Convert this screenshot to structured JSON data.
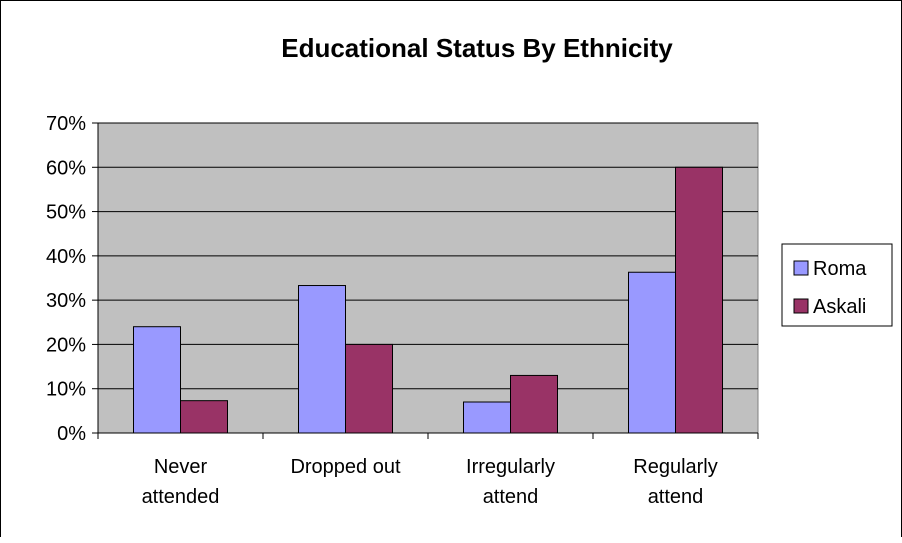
{
  "chart_data": {
    "type": "bar",
    "title": "Educational Status By Ethnicity",
    "categories": [
      [
        "Never",
        "attended"
      ],
      [
        "Dropped out"
      ],
      [
        "Irregularly",
        "attend"
      ],
      [
        "Regularly",
        "attend"
      ]
    ],
    "series": [
      {
        "name": "Roma",
        "values": [
          0.24,
          0.333,
          0.07,
          0.363
        ],
        "color": "#9999ff"
      },
      {
        "name": "Askali",
        "values": [
          0.073,
          0.2,
          0.13,
          0.6
        ],
        "color": "#993366"
      }
    ],
    "ylim": [
      0,
      0.7
    ],
    "yticks": [
      "0%",
      "10%",
      "20%",
      "30%",
      "40%",
      "50%",
      "60%",
      "70%"
    ],
    "grid": true,
    "legend_position": "right",
    "plot_background": "#c0c0c0"
  }
}
